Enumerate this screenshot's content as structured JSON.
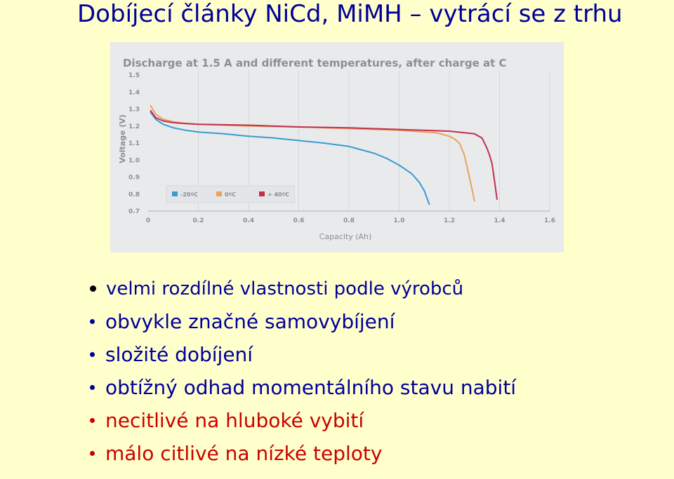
{
  "slide": {
    "title": "Dobíjecí články NiCd, MiMH – vytrácí se z trhu"
  },
  "bullets": [
    {
      "text": "velmi rozdílné vlastnosti podle výrobců",
      "color": "#000099"
    },
    {
      "text": "obvykle značné samovybíjení",
      "color": "#000099"
    },
    {
      "text": "složité dobíjení",
      "color": "#000099"
    },
    {
      "text": "obtížný odhad momentálního stavu nabití",
      "color": "#000099"
    },
    {
      "text": "necitlivé na hluboké vybití",
      "color": "#CC0000"
    },
    {
      "text": "málo citlivé na nízké teploty",
      "color": "#CC0000"
    }
  ],
  "chart_data": {
    "type": "line",
    "title": "Discharge at 1.5 A and different temperatures, after charge at C",
    "xlabel": "Capacity (Ah)",
    "ylabel": "Voltage (V)",
    "xlim": [
      0,
      1.6
    ],
    "ylim": [
      0.7,
      1.5
    ],
    "x_ticks": [
      "0",
      "0.2",
      "0.4",
      "0.6",
      "0.8",
      "1.0",
      "1.2",
      "1.4",
      "1.6"
    ],
    "y_ticks": [
      "0.7",
      "0.8",
      "0.9",
      "1.0",
      "1.1",
      "1.2",
      "1.3",
      "1.4",
      "1.5"
    ],
    "grid": "vertical",
    "legend_position": "bottom-left",
    "series": [
      {
        "name": "-20ºC",
        "color": "#3A9BD0",
        "x": [
          0.01,
          0.03,
          0.06,
          0.1,
          0.15,
          0.2,
          0.3,
          0.4,
          0.5,
          0.6,
          0.7,
          0.8,
          0.9,
          0.95,
          1.0,
          1.05,
          1.08,
          1.1,
          1.12
        ],
        "y": [
          1.28,
          1.24,
          1.21,
          1.19,
          1.175,
          1.165,
          1.155,
          1.14,
          1.13,
          1.115,
          1.1,
          1.08,
          1.04,
          1.01,
          0.97,
          0.92,
          0.87,
          0.82,
          0.74
        ]
      },
      {
        "name": "0ºC",
        "color": "#EDA25A",
        "x": [
          0.01,
          0.03,
          0.06,
          0.1,
          0.15,
          0.2,
          0.4,
          0.6,
          0.8,
          1.0,
          1.1,
          1.15,
          1.2,
          1.22,
          1.24,
          1.26,
          1.28,
          1.3
        ],
        "y": [
          1.32,
          1.27,
          1.24,
          1.225,
          1.215,
          1.21,
          1.2,
          1.195,
          1.185,
          1.175,
          1.165,
          1.16,
          1.14,
          1.125,
          1.1,
          1.03,
          0.9,
          0.76
        ]
      },
      {
        "name": "+ 40ºC",
        "color": "#C0304E",
        "x": [
          0.01,
          0.03,
          0.06,
          0.1,
          0.15,
          0.2,
          0.4,
          0.6,
          0.8,
          1.0,
          1.2,
          1.3,
          1.33,
          1.35,
          1.36,
          1.37,
          1.38,
          1.39
        ],
        "y": [
          1.29,
          1.25,
          1.23,
          1.22,
          1.215,
          1.21,
          1.205,
          1.195,
          1.19,
          1.18,
          1.17,
          1.155,
          1.13,
          1.07,
          1.03,
          0.98,
          0.88,
          0.77
        ]
      }
    ]
  }
}
